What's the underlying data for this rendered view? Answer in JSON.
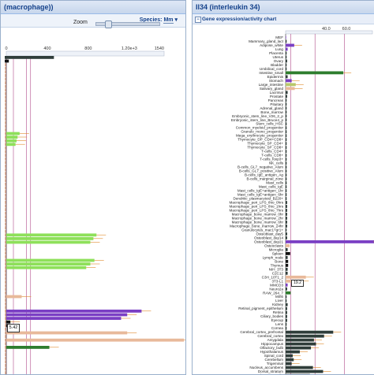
{
  "left_panel": {
    "title": "(macrophage))",
    "species_label": "Species:",
    "species_value": "Mm",
    "zoom_label": "Zoom",
    "zoom_level": 0.15,
    "axis_ticks": [
      "0",
      "400",
      "800",
      "1.20e+3",
      "1540"
    ],
    "tooltip": "5.42"
  },
  "right_panel": {
    "title": "Il34 (interleukin 34)",
    "chart_title": "Gene expression/activity chart",
    "axis_ticks": [
      "40.0",
      "60.0"
    ],
    "tooltip": "19.2",
    "colors": {
      "purple": "#7b3fc4",
      "dark": "#2f3d3a",
      "green": "#2e7d2e",
      "light_green": "#8ee05a",
      "peach": "#e8b99a",
      "black": "#111111",
      "yellow_green": "#b8c86a"
    },
    "tissues": [
      {
        "label": "MEF",
        "value": 0.5,
        "color": "#7b3fc4"
      },
      {
        "label": "Mammary_gland_lact",
        "value": 1.0,
        "color": "#2f3d3a"
      },
      {
        "label": "Adipose_white",
        "value": 8.5,
        "color": "#7b3fc4"
      },
      {
        "label": "Lung",
        "value": 2.0,
        "color": "#7b3fc4"
      },
      {
        "label": "Placenta",
        "value": 1.0,
        "color": "#2f3d3a"
      },
      {
        "label": "Uterus",
        "value": 1.0,
        "color": "#2f3d3a"
      },
      {
        "label": "Ovary",
        "value": 1.5,
        "color": "#2f3d3a"
      },
      {
        "label": "Bladder",
        "value": 1.0,
        "color": "#2f3d3a"
      },
      {
        "label": "Umbilical_cord",
        "value": 1.0,
        "color": "#2f3d3a"
      },
      {
        "label": "Intestine_small",
        "value": 57.0,
        "color": "#2e7d2e"
      },
      {
        "label": "Epidermis",
        "value": 2.0,
        "color": "#2f3d3a"
      },
      {
        "label": "Stomach",
        "value": 6.0,
        "color": "#7b3fc4"
      },
      {
        "label": "Large_intestine",
        "value": 10.0,
        "color": "#b8c86a"
      },
      {
        "label": "Salivary_gland",
        "value": 9.0,
        "color": "#e8b99a"
      },
      {
        "label": "Lacrimal",
        "value": 2.0,
        "color": "#2f3d3a"
      },
      {
        "label": "Prostate",
        "value": 1.5,
        "color": "#2f3d3a"
      },
      {
        "label": "Pancreas",
        "value": 1.0,
        "color": "#2f3d3a"
      },
      {
        "label": "Pituitary",
        "value": 1.0,
        "color": "#2f3d3a"
      },
      {
        "label": "Adrenal_gland",
        "value": 1.0,
        "color": "#2f3d3a"
      },
      {
        "label": "Bone_marrow",
        "value": 1.0,
        "color": "#2f3d3a"
      },
      {
        "label": "Embryonic_stem_line_V26_2_p",
        "value": 1.0,
        "color": "#2f3d3a"
      },
      {
        "label": "Embryonic_stem_line_Bruce4_p",
        "value": 1.0,
        "color": "#2f3d3a"
      },
      {
        "label": "Stem_cells_HSC",
        "value": 1.0,
        "color": "#2f3d3a"
      },
      {
        "label": "Common_myeloid_progenitor",
        "value": 1.0,
        "color": "#2f3d3a"
      },
      {
        "label": "Granulo_mono_progenitor",
        "value": 1.0,
        "color": "#2f3d3a"
      },
      {
        "label": "Mega_erythrocyte_progenitor",
        "value": 1.0,
        "color": "#2f3d3a"
      },
      {
        "label": "Thymocyte_DP_CD4+CD8+",
        "value": 1.0,
        "color": "#2f3d3a"
      },
      {
        "label": "Thymocyte_SP_CD4+",
        "value": 1.0,
        "color": "#2f3d3a"
      },
      {
        "label": "Thymocyte_SP_CD8+",
        "value": 1.0,
        "color": "#2f3d3a"
      },
      {
        "label": "T-cells_CD4+",
        "value": 1.0,
        "color": "#2f3d3a"
      },
      {
        "label": "T-cells_CD8+",
        "value": 1.0,
        "color": "#2f3d3a"
      },
      {
        "label": "T-cells_foxp3+",
        "value": 1.0,
        "color": "#2f3d3a"
      },
      {
        "label": "NK_cells",
        "value": 1.0,
        "color": "#2f3d3a"
      },
      {
        "label": "B-cells_GL7_negative_Alum",
        "value": 1.0,
        "color": "#2f3d3a"
      },
      {
        "label": "B-cells_GL7_positive_Alum",
        "value": 1.0,
        "color": "#2f3d3a"
      },
      {
        "label": "B-cells_IgE_antigen_Ag",
        "value": 1.0,
        "color": "#2f3d3a"
      },
      {
        "label": "B-cells_marginal_zone",
        "value": 1.0,
        "color": "#2f3d3a"
      },
      {
        "label": "Mast_cells",
        "value": 1.0,
        "color": "#2f3d3a"
      },
      {
        "label": "Mast_cells_IgE",
        "value": 1.0,
        "color": "#2f3d3a"
      },
      {
        "label": "Mast_cells_IgE+antigen_1hr",
        "value": 1.0,
        "color": "#2f3d3a"
      },
      {
        "label": "Mast_cells_IgE+antigen_6hr",
        "value": 1.0,
        "color": "#2f3d3a"
      },
      {
        "label": "Dendritic_plasmacytoid_B220+",
        "value": 1.0,
        "color": "#2f3d3a"
      },
      {
        "label": "Macrophage_peri_LPS_thio_0hrs",
        "value": 1.5,
        "color": "#2f3d3a"
      },
      {
        "label": "Macrophage_peri_LPS_thio_1hrs",
        "value": 1.5,
        "color": "#2f3d3a"
      },
      {
        "label": "Macrophage_peri_LPS_thio_7hrs",
        "value": 1.5,
        "color": "#2f3d3a"
      },
      {
        "label": "Macrophage_bone_marrow_0hr",
        "value": 1.5,
        "color": "#2f3d3a"
      },
      {
        "label": "Macrophage_bone_marrow_2hr",
        "value": 1.5,
        "color": "#2f3d3a"
      },
      {
        "label": "Macrophage_bone_marrow_6hr",
        "value": 1.5,
        "color": "#2f3d3a"
      },
      {
        "label": "Macrophage_bone_marrow_24hr",
        "value": 1.5,
        "color": "#2f3d3a"
      },
      {
        "label": "Granulocytes_mac1+gr1+",
        "value": 1.0,
        "color": "#2f3d3a"
      },
      {
        "label": "Osteoblast_day5",
        "value": 1.5,
        "color": "#2f3d3a"
      },
      {
        "label": "Osteoblast_day14",
        "value": 1.5,
        "color": "#2f3d3a"
      },
      {
        "label": "Osteoblast_day21",
        "value": 90.0,
        "color": "#7b3fc4"
      },
      {
        "label": "Osteoclasts",
        "value": 4.0,
        "color": "#e8b99a"
      },
      {
        "label": "Microglia",
        "value": 2.0,
        "color": "#2f3d3a"
      },
      {
        "label": "Spleen",
        "value": 4.5,
        "color": "#111111"
      },
      {
        "label": "Lymph_node",
        "value": 2.0,
        "color": "#2f3d3a"
      },
      {
        "label": "Bone",
        "value": 2.5,
        "color": "#111111"
      },
      {
        "label": "Thymus",
        "value": 2.5,
        "color": "#111111"
      },
      {
        "label": "NIH_3T3",
        "value": 2.0,
        "color": "#2f3d3a"
      },
      {
        "label": "C2C12",
        "value": 2.0,
        "color": "#2f3d3a"
      },
      {
        "label": "C3H_10T1_2",
        "value": 20.0,
        "color": "#e8b99a"
      },
      {
        "label": "3T3-L1",
        "value": 15.0,
        "color": "#e8b99a"
      },
      {
        "label": "MMCD3",
        "value": 2.0,
        "color": "#7b3fc4"
      },
      {
        "label": "Neuro2a",
        "value": 1.5,
        "color": "#2f3d3a"
      },
      {
        "label": "RAW_264_7",
        "value": 5.0,
        "color": "#2e7d2e"
      },
      {
        "label": "Min6",
        "value": 1.0,
        "color": "#2f3d3a"
      },
      {
        "label": "Liver",
        "value": 1.0,
        "color": "#2f3d3a"
      },
      {
        "label": "Kidney",
        "value": 2.0,
        "color": "#2f3d3a"
      },
      {
        "label": "Retinal_pigment_epithelium",
        "value": 1.5,
        "color": "#2f3d3a"
      },
      {
        "label": "Retina",
        "value": 1.5,
        "color": "#2f3d3a"
      },
      {
        "label": "Ciliary_bodies",
        "value": 1.5,
        "color": "#2f3d3a"
      },
      {
        "label": "Eyecup",
        "value": 1.5,
        "color": "#2f3d3a"
      },
      {
        "label": "Lens",
        "value": 1.0,
        "color": "#2f3d3a"
      },
      {
        "label": "Cornea",
        "value": 1.0,
        "color": "#2f3d3a"
      },
      {
        "label": "Cerebral_cortex_prefrontal",
        "value": 47.0,
        "color": "#2f3d3a"
      },
      {
        "label": "Cerebral_cortex",
        "value": 38.0,
        "color": "#2f3d3a"
      },
      {
        "label": "Amygdala",
        "value": 28.0,
        "color": "#2f3d3a"
      },
      {
        "label": "Hippocampus",
        "value": 30.0,
        "color": "#2f3d3a"
      },
      {
        "label": "Olfactory_bulb",
        "value": 25.0,
        "color": "#2f3d3a"
      },
      {
        "label": "Hypothalamus",
        "value": 14.0,
        "color": "#2f3d3a"
      },
      {
        "label": "Spinal_cord",
        "value": 7.0,
        "color": "#2f3d3a"
      },
      {
        "label": "Cerebellum",
        "value": 8.0,
        "color": "#2f3d3a"
      },
      {
        "label": "Trigeminal",
        "value": 6.0,
        "color": "#2f3d3a"
      },
      {
        "label": "Nucleus_accumbens",
        "value": 27.0,
        "color": "#2f3d3a"
      },
      {
        "label": "Dorsal_striatum",
        "value": 37.0,
        "color": "#2f3d3a"
      },
      {
        "label": "Dorsal_root_ganglia",
        "value": 24.0,
        "color": "#2f3d3a"
      }
    ]
  },
  "left_chart_bars": [
    {
      "value": 480,
      "color": "#2f3d3a"
    },
    {
      "value": 40,
      "color": "#111111"
    },
    {
      "value": 10,
      "color": "#e8b99a"
    },
    {
      "value": 10,
      "color": "#e8b99a"
    },
    {
      "value": 10,
      "color": "#e8b99a"
    },
    {
      "value": 10,
      "color": "#e8b99a"
    },
    {
      "value": 10,
      "color": "#e8b99a"
    },
    {
      "value": 10,
      "color": "#e8b99a"
    },
    {
      "value": 10,
      "color": "#e8b99a"
    },
    {
      "value": 10,
      "color": "#e8b99a"
    },
    {
      "value": 10,
      "color": "#e8b99a"
    },
    {
      "value": 10,
      "color": "#e8b99a"
    },
    {
      "value": 10,
      "color": "#e8b99a"
    },
    {
      "value": 10,
      "color": "#e8b99a"
    },
    {
      "value": 10,
      "color": "#e8b99a"
    },
    {
      "value": 10,
      "color": "#e8b99a"
    },
    {
      "value": 10,
      "color": "#e8b99a"
    },
    {
      "value": 10,
      "color": "#e8b99a"
    },
    {
      "value": 10,
      "color": "#e8b99a"
    },
    {
      "value": 10,
      "color": "#e8b99a"
    },
    {
      "value": 10,
      "color": "#e8b99a"
    },
    {
      "value": 10,
      "color": "#e8b99a"
    },
    {
      "value": 10,
      "color": "#e8b99a"
    },
    {
      "value": 10,
      "color": "#e8b99a"
    },
    {
      "value": 10,
      "color": "#e8b99a"
    },
    {
      "value": 10,
      "color": "#e8b99a"
    },
    {
      "value": 10,
      "color": "#e8b99a"
    },
    {
      "value": 10,
      "color": "#e8b99a"
    },
    {
      "value": 10,
      "color": "#e8b99a"
    },
    {
      "value": 10,
      "color": "#e8b99a"
    },
    {
      "value": 10,
      "color": "#e8b99a"
    },
    {
      "value": 10,
      "color": "#e8b99a"
    },
    {
      "value": 10,
      "color": "#e8b99a"
    },
    {
      "value": 10,
      "color": "#e8b99a"
    },
    {
      "value": 10,
      "color": "#e8b99a"
    },
    {
      "value": 10,
      "color": "#e8b99a"
    },
    {
      "value": 10,
      "color": "#e8b99a"
    },
    {
      "value": 10,
      "color": "#e8b99a"
    },
    {
      "value": 10,
      "color": "#e8b99a"
    },
    {
      "value": 10,
      "color": "#e8b99a"
    },
    {
      "value": 10,
      "color": "#e8b99a"
    },
    {
      "value": 10,
      "color": "#e8b99a"
    },
    {
      "value": 10,
      "color": "#e8b99a"
    },
    {
      "value": 10,
      "color": "#e8b99a"
    },
    {
      "value": 10,
      "color": "#e8b99a"
    },
    {
      "value": 10,
      "color": "#e8b99a"
    },
    {
      "value": 10,
      "color": "#e8b99a"
    },
    {
      "value": 10,
      "color": "#e8b99a"
    },
    {
      "value": 10,
      "color": "#e8b99a"
    },
    {
      "value": 10,
      "color": "#e8b99a"
    },
    {
      "value": 10,
      "color": "#e8b99a"
    },
    {
      "value": 10,
      "color": "#e8b99a"
    },
    {
      "value": 10,
      "color": "#e8b99a"
    },
    {
      "value": 10,
      "color": "#e8b99a"
    },
    {
      "value": 10,
      "color": "#e8b99a"
    },
    {
      "value": 10,
      "color": "#e8b99a"
    },
    {
      "value": 10,
      "color": "#e8b99a"
    },
    {
      "value": 10,
      "color": "#e8b99a"
    },
    {
      "value": 10,
      "color": "#e8b99a"
    },
    {
      "value": 10,
      "color": "#e8b99a"
    },
    {
      "value": 10,
      "color": "#e8b99a"
    },
    {
      "value": 10,
      "color": "#e8b99a"
    },
    {
      "value": 10,
      "color": "#e8b99a"
    },
    {
      "value": 10,
      "color": "#e8b99a"
    },
    {
      "value": 10,
      "color": "#e8b99a"
    },
    {
      "value": 10,
      "color": "#e8b99a"
    },
    {
      "value": 10,
      "color": "#e8b99a"
    },
    {
      "value": 10,
      "color": "#e8b99a"
    },
    {
      "value": 10,
      "color": "#e8b99a"
    },
    {
      "value": 10,
      "color": "#e8b99a"
    },
    {
      "value": 10,
      "color": "#e8b99a"
    },
    {
      "value": 10,
      "color": "#e8b99a"
    },
    {
      "value": 10,
      "color": "#e8b99a"
    },
    {
      "value": 10,
      "color": "#e8b99a"
    },
    {
      "value": 10,
      "color": "#e8b99a"
    },
    {
      "value": 10,
      "color": "#e8b99a"
    },
    {
      "value": 10,
      "color": "#e8b99a"
    },
    {
      "value": 10,
      "color": "#e8b99a"
    },
    {
      "value": 10,
      "color": "#e8b99a"
    },
    {
      "value": 10,
      "color": "#e8b99a"
    },
    {
      "value": 10,
      "color": "#e8b99a"
    },
    {
      "value": 10,
      "color": "#e8b99a"
    },
    {
      "value": 10,
      "color": "#e8b99a"
    },
    {
      "value": 10,
      "color": "#e8b99a"
    },
    {
      "value": 10,
      "color": "#e8b99a"
    },
    {
      "value": 10,
      "color": "#e8b99a"
    },
    {
      "value": 10,
      "color": "#e8b99a"
    },
    {
      "value": 10,
      "color": "#e8b99a"
    }
  ],
  "left_chart_highlights": [
    {
      "row": 21,
      "value": 130,
      "color": "#8ee05a"
    },
    {
      "row": 22,
      "value": 110,
      "color": "#8ee05a"
    },
    {
      "row": 23,
      "value": 100,
      "color": "#8ee05a"
    },
    {
      "row": 24,
      "value": 90,
      "color": "#8ee05a"
    },
    {
      "row": 49,
      "value": 880,
      "color": "#8ee05a"
    },
    {
      "row": 50,
      "value": 850,
      "color": "#8ee05a"
    },
    {
      "row": 51,
      "value": 820,
      "color": "#8ee05a"
    },
    {
      "row": 56,
      "value": 860,
      "color": "#8ee05a"
    },
    {
      "row": 57,
      "value": 820,
      "color": "#8ee05a"
    },
    {
      "row": 58,
      "value": 780,
      "color": "#8ee05a"
    },
    {
      "row": 66,
      "value": 150,
      "color": "#e8b99a"
    },
    {
      "row": 70,
      "value": 1320,
      "color": "#7b3fc4"
    },
    {
      "row": 71,
      "value": 1180,
      "color": "#7b3fc4"
    },
    {
      "row": 72,
      "value": 1120,
      "color": "#7b3fc4"
    },
    {
      "row": 73,
      "value": 40,
      "color": "#111111"
    },
    {
      "row": 74,
      "value": 30,
      "color": "#111111"
    },
    {
      "row": 76,
      "value": 1180,
      "color": "#e8b99a"
    },
    {
      "row": 78,
      "value": 1780,
      "color": "#e8b99a"
    },
    {
      "row": 80,
      "value": 420,
      "color": "#2e7d2e"
    }
  ]
}
